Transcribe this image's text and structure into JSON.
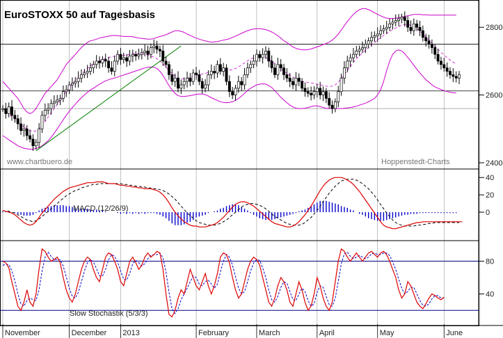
{
  "chart_data": {
    "title": "EuroSTOXX 50 auf Tagesbasis",
    "watermark_left": "www.chartbuero.de",
    "watermark_right": "Hoppenstedt-Charts",
    "colors": {
      "price": "#000000",
      "bollinger": "#cc00cc",
      "ma": "#cc00cc",
      "trendline": "#008000",
      "support_lines": "#000000",
      "macd_line": "#dd0000",
      "macd_signal": "#000000",
      "macd_hist": "#0000cc",
      "stoch_k": "#dd0000",
      "stoch_d": "#0000cc",
      "stoch_levels": "#000080"
    },
    "x_labels": [
      {
        "label": "November",
        "day": 0
      },
      {
        "label": "December",
        "day": 22
      },
      {
        "label": "2013",
        "day": 39
      },
      {
        "label": "February",
        "day": 64
      },
      {
        "label": "March",
        "day": 84
      },
      {
        "label": "April",
        "day": 104
      },
      {
        "label": "May",
        "day": 124
      },
      {
        "label": "June",
        "day": 146
      }
    ],
    "price_panel": {
      "type": "ohlc",
      "ylim": [
        2400,
        2860
      ],
      "yticks": [
        2400,
        2600,
        2800
      ],
      "horizontal_lines": [
        2750,
        2612,
        2560
      ],
      "trendline": [
        [
          11,
          2435
        ],
        [
          59,
          2745
        ]
      ],
      "close": [
        2560,
        2545,
        2565,
        2540,
        2530,
        2515,
        2495,
        2500,
        2480,
        2470,
        2450,
        2460,
        2500,
        2540,
        2555,
        2560,
        2575,
        2580,
        2585,
        2590,
        2610,
        2615,
        2630,
        2635,
        2640,
        2650,
        2660,
        2665,
        2670,
        2680,
        2690,
        2700,
        2695,
        2705,
        2700,
        2680,
        2670,
        2700,
        2720,
        2705,
        2710,
        2700,
        2715,
        2720,
        2715,
        2720,
        2725,
        2730,
        2720,
        2740,
        2745,
        2735,
        2730,
        2700,
        2690,
        2660,
        2640,
        2650,
        2620,
        2630,
        2640,
        2650,
        2640,
        2665,
        2660,
        2640,
        2620,
        2630,
        2660,
        2670,
        2665,
        2690,
        2670,
        2680,
        2640,
        2610,
        2600,
        2620,
        2640,
        2630,
        2660,
        2680,
        2690,
        2700,
        2720,
        2710,
        2720,
        2730,
        2700,
        2680,
        2660,
        2690,
        2680,
        2660,
        2650,
        2640,
        2630,
        2650,
        2640,
        2620,
        2610,
        2605,
        2600,
        2610,
        2620,
        2600,
        2610,
        2590,
        2570,
        2560,
        2580,
        2610,
        2650,
        2680,
        2700,
        2710,
        2720,
        2730,
        2735,
        2740,
        2750,
        2760,
        2770,
        2775,
        2780,
        2790,
        2795,
        2800,
        2810,
        2815,
        2820,
        2825,
        2830,
        2820,
        2800,
        2790,
        2810,
        2800,
        2790,
        2770,
        2760,
        2750,
        2740,
        2720,
        2700,
        2690,
        2680,
        2670,
        2660,
        2655,
        2650,
        2660
      ],
      "bollinger_upper": [
        2640,
        2630,
        2620,
        2610,
        2600,
        2590,
        2575,
        2560,
        2550,
        2545,
        2550,
        2560,
        2575,
        2590,
        2605,
        2615,
        2625,
        2635,
        2645,
        2660,
        2675,
        2690,
        2700,
        2710,
        2720,
        2730,
        2740,
        2748,
        2755,
        2760,
        2762,
        2765,
        2768,
        2770,
        2772,
        2774,
        2775,
        2776,
        2775,
        2774,
        2773,
        2773,
        2773,
        2772,
        2770,
        2768,
        2767,
        2766,
        2765,
        2765,
        2767,
        2770,
        2773,
        2775,
        2778,
        2782,
        2786,
        2790,
        2790,
        2788,
        2785,
        2780,
        2776,
        2772,
        2768,
        2765,
        2762,
        2760,
        2758,
        2756,
        2757,
        2758,
        2760,
        2762,
        2764,
        2766,
        2770,
        2774,
        2778,
        2782,
        2786,
        2790,
        2793,
        2795,
        2796,
        2796,
        2795,
        2793,
        2790,
        2786,
        2781,
        2775,
        2768,
        2760,
        2755,
        2748,
        2742,
        2738,
        2735,
        2734,
        2733,
        2734,
        2736,
        2739,
        2742,
        2745,
        2749,
        2752,
        2756,
        2762,
        2770,
        2780,
        2792,
        2805,
        2817,
        2828,
        2838,
        2846,
        2852,
        2855,
        2855,
        2852,
        2848,
        2843,
        2838,
        2834,
        2830,
        2827,
        2826,
        2826,
        2827,
        2828,
        2830,
        2832,
        2834,
        2836,
        2838,
        2838,
        2838,
        2837,
        2837,
        2836,
        2836,
        2836,
        2836,
        2836,
        2836,
        2836,
        2836,
        2836,
        2836
      ],
      "bollinger_lower": [
        2480,
        2474,
        2468,
        2462,
        2456,
        2450,
        2446,
        2443,
        2441,
        2440,
        2440,
        2442,
        2445,
        2450,
        2457,
        2465,
        2475,
        2487,
        2500,
        2513,
        2527,
        2540,
        2552,
        2563,
        2573,
        2583,
        2592,
        2600,
        2608,
        2615,
        2620,
        2626,
        2632,
        2637,
        2642,
        2645,
        2648,
        2650,
        2653,
        2656,
        2659,
        2662,
        2665,
        2668,
        2671,
        2674,
        2677,
        2680,
        2682,
        2683,
        2682,
        2678,
        2670,
        2658,
        2643,
        2628,
        2615,
        2605,
        2598,
        2596,
        2596,
        2597,
        2598,
        2600,
        2602,
        2603,
        2603,
        2601,
        2597,
        2592,
        2588,
        2584,
        2580,
        2578,
        2577,
        2578,
        2580,
        2584,
        2590,
        2597,
        2605,
        2614,
        2620,
        2625,
        2630,
        2632,
        2633,
        2632,
        2628,
        2622,
        2613,
        2603,
        2593,
        2585,
        2577,
        2570,
        2565,
        2561,
        2560,
        2560,
        2561,
        2563,
        2566,
        2568,
        2568,
        2566,
        2563,
        2561,
        2560,
        2560,
        2560,
        2560,
        2560,
        2561,
        2562,
        2563,
        2565,
        2567,
        2570,
        2573,
        2576,
        2580,
        2585,
        2590,
        2600,
        2615,
        2640,
        2672,
        2700,
        2720,
        2730,
        2733,
        2730,
        2722,
        2711,
        2700,
        2688,
        2676,
        2665,
        2655,
        2645,
        2638,
        2630,
        2624,
        2620,
        2616,
        2613,
        2610,
        2608,
        2607,
        2606
      ],
      "ma": [
        2560,
        2552,
        2544,
        2536,
        2528,
        2520,
        2512,
        2506,
        2500,
        2495,
        2492,
        2494,
        2500,
        2510,
        2522,
        2535,
        2548,
        2560,
        2572,
        2585,
        2598,
        2610,
        2622,
        2632,
        2642,
        2652,
        2662,
        2670,
        2678,
        2686,
        2692,
        2697,
        2701,
        2705,
        2708,
        2711,
        2713,
        2715,
        2716,
        2716,
        2717,
        2718,
        2720,
        2722,
        2722,
        2722,
        2722,
        2720,
        2718,
        2715,
        2712,
        2707,
        2700,
        2692,
        2682,
        2672,
        2663,
        2656,
        2650,
        2648,
        2648,
        2650,
        2652,
        2655,
        2658,
        2660,
        2662,
        2664,
        2666,
        2667,
        2669,
        2670,
        2671,
        2672,
        2672,
        2673,
        2675,
        2678,
        2683,
        2689,
        2695,
        2701,
        2706,
        2710,
        2713,
        2714,
        2713,
        2710,
        2706,
        2700,
        2693,
        2685,
        2677,
        2670,
        2664,
        2658,
        2653,
        2648,
        2644,
        2641,
        2639,
        2637,
        2636,
        2634,
        2632,
        2630,
        2628,
        2626,
        2625,
        2626,
        2630,
        2638,
        2648,
        2660,
        2672,
        2684,
        2696,
        2707,
        2716,
        2724,
        2732,
        2740,
        2748,
        2755,
        2762,
        2769,
        2776,
        2782,
        2788,
        2793,
        2798,
        2802,
        2806,
        2808,
        2808,
        2806,
        2802,
        2796,
        2789,
        2780,
        2771,
        2762,
        2753,
        2744,
        2735,
        2726,
        2718,
        2710,
        2703,
        2697,
        2692
      ]
    },
    "macd_panel": {
      "label": "MACD (12/26/9)",
      "ylim": [
        -20,
        45
      ],
      "yticks": [
        40,
        20,
        0
      ],
      "macd": [
        2,
        1,
        0,
        -1,
        -3,
        -6,
        -9,
        -12,
        -14,
        -15,
        -14,
        -11,
        -6,
        -1,
        3,
        7,
        11,
        15,
        18,
        21,
        24,
        26,
        28,
        29,
        30,
        31,
        32,
        33,
        34,
        34,
        34,
        35,
        35,
        35,
        34,
        33,
        33,
        33,
        32,
        31,
        31,
        30,
        30,
        29,
        29,
        28,
        28,
        27,
        27,
        27,
        26,
        25,
        23,
        20,
        16,
        11,
        5,
        0,
        -4,
        -8,
        -11,
        -13,
        -15,
        -16,
        -16,
        -17,
        -17,
        -17,
        -16,
        -15,
        -14,
        -12,
        -9,
        -6,
        -2,
        2,
        6,
        9,
        11,
        12,
        12,
        11,
        9,
        7,
        4,
        1,
        -2,
        -5,
        -8,
        -11,
        -13,
        -14,
        -15,
        -16,
        -17,
        -17,
        -16,
        -14,
        -11,
        -7,
        -3,
        2,
        7,
        13,
        19,
        25,
        30,
        34,
        37,
        39,
        40,
        40,
        40,
        39,
        37,
        35,
        32,
        28,
        24,
        19,
        14,
        9,
        4,
        -1,
        -6,
        -11,
        -15,
        -17,
        -18,
        -19,
        -19,
        -18,
        -17,
        -16,
        -15,
        -14,
        -13,
        -12,
        -12,
        -11,
        -11,
        -11,
        -11,
        -11,
        -11,
        -11,
        -11,
        -11,
        -11,
        -11,
        -11,
        -11,
        -11
      ],
      "signal": [
        2,
        1,
        1,
        0,
        -1,
        -3,
        -5,
        -7,
        -9,
        -10,
        -11,
        -10,
        -8,
        -5,
        -2,
        1,
        4,
        7,
        10,
        13,
        16,
        19,
        21,
        23,
        25,
        26,
        28,
        29,
        30,
        31,
        32,
        32,
        33,
        33,
        33,
        33,
        33,
        33,
        33,
        33,
        32,
        32,
        31,
        31,
        30,
        30,
        29,
        29,
        28,
        28,
        27,
        27,
        26,
        25,
        23,
        21,
        18,
        15,
        11,
        7,
        3,
        -1,
        -4,
        -7,
        -10,
        -12,
        -13,
        -14,
        -15,
        -15,
        -15,
        -14,
        -13,
        -11,
        -9,
        -6,
        -3,
        0,
        3,
        6,
        8,
        9,
        10,
        10,
        9,
        8,
        6,
        4,
        1,
        -2,
        -5,
        -7,
        -9,
        -11,
        -13,
        -14,
        -15,
        -15,
        -15,
        -14,
        -12,
        -9,
        -6,
        -2,
        2,
        7,
        12,
        17,
        22,
        26,
        30,
        33,
        36,
        37,
        38,
        38,
        38,
        37,
        35,
        33,
        30,
        27,
        23,
        19,
        14,
        9,
        4,
        -1,
        -5,
        -9,
        -12,
        -14,
        -15,
        -16,
        -16,
        -16,
        -16,
        -15,
        -15,
        -14,
        -14,
        -13,
        -13,
        -12,
        -12,
        -12,
        -12,
        -12,
        -12,
        -12,
        -12,
        -12
      ],
      "histogram": [
        1,
        1,
        1,
        0,
        -1,
        -2,
        -3,
        -4,
        -4,
        -4,
        -3,
        -1,
        2,
        4,
        5,
        6,
        7,
        8,
        8,
        8,
        8,
        7,
        7,
        6,
        5,
        5,
        4,
        4,
        4,
        3,
        2,
        3,
        2,
        2,
        1,
        0,
        0,
        0,
        -1,
        -2,
        -1,
        -2,
        -1,
        -2,
        -1,
        -2,
        -1,
        -2,
        -1,
        -1,
        -1,
        -2,
        -3,
        -5,
        -7,
        -10,
        -13,
        -15,
        -15,
        -15,
        -14,
        -12,
        -11,
        -9,
        -6,
        -5,
        -4,
        -3,
        -1,
        0,
        1,
        2,
        4,
        5,
        7,
        8,
        9,
        9,
        8,
        6,
        4,
        2,
        -1,
        -3,
        -5,
        -7,
        -8,
        -9,
        -9,
        -9,
        -8,
        -7,
        -6,
        -5,
        -4,
        -3,
        -2,
        -1,
        1,
        2,
        3,
        5,
        7,
        9,
        11,
        13,
        13,
        13,
        12,
        11,
        10,
        9,
        7,
        6,
        5,
        3,
        2,
        0,
        -2,
        -3,
        -5,
        -7,
        -8,
        -9,
        -10,
        -10,
        -10,
        -9,
        -8,
        -7,
        -6,
        -5,
        -4,
        -3,
        -3,
        -2,
        -2,
        -2,
        -1,
        -1,
        -1,
        -1,
        -1,
        -1,
        -1,
        -1,
        -1,
        -1,
        -1,
        -1,
        -1
      ]
    },
    "stoch_panel": {
      "label": "Slow Stochastik (5/3/3)",
      "ylim": [
        10,
        100
      ],
      "yticks": [
        80,
        40
      ],
      "levels": [
        80,
        20
      ],
      "k": [
        80,
        78,
        72,
        55,
        40,
        25,
        20,
        30,
        45,
        30,
        25,
        40,
        70,
        95,
        92,
        85,
        80,
        82,
        85,
        78,
        60,
        45,
        35,
        30,
        40,
        55,
        70,
        80,
        85,
        82,
        70,
        60,
        55,
        70,
        85,
        90,
        88,
        80,
        70,
        55,
        50,
        65,
        80,
        85,
        78,
        70,
        75,
        85,
        90,
        85,
        88,
        92,
        90,
        70,
        40,
        15,
        12,
        20,
        35,
        45,
        40,
        55,
        70,
        60,
        50,
        45,
        55,
        65,
        50,
        40,
        50,
        65,
        85,
        90,
        88,
        78,
        60,
        45,
        35,
        40,
        55,
        70,
        80,
        85,
        82,
        75,
        60,
        45,
        30,
        25,
        35,
        50,
        60,
        55,
        45,
        30,
        25,
        40,
        55,
        45,
        30,
        20,
        25,
        40,
        60,
        50,
        35,
        25,
        20,
        30,
        55,
        80,
        95,
        92,
        85,
        80,
        85,
        90,
        85,
        80,
        85,
        90,
        92,
        88,
        85,
        90,
        92,
        88,
        80,
        70,
        60,
        45,
        35,
        40,
        55,
        50,
        40,
        30,
        25,
        22,
        28,
        35,
        40,
        38,
        35,
        33,
        36
      ],
      "d": [
        75,
        76,
        76,
        68,
        56,
        40,
        28,
        25,
        32,
        35,
        33,
        32,
        45,
        68,
        85,
        91,
        86,
        82,
        82,
        82,
        74,
        61,
        47,
        37,
        35,
        42,
        55,
        68,
        78,
        82,
        79,
        71,
        62,
        62,
        70,
        82,
        88,
        86,
        79,
        68,
        58,
        57,
        65,
        77,
        81,
        78,
        74,
        77,
        83,
        87,
        88,
        88,
        90,
        84,
        67,
        42,
        22,
        16,
        22,
        33,
        40,
        47,
        55,
        62,
        60,
        52,
        50,
        55,
        57,
        52,
        47,
        52,
        67,
        80,
        88,
        85,
        75,
        61,
        47,
        40,
        43,
        55,
        68,
        78,
        82,
        81,
        72,
        60,
        45,
        33,
        30,
        37,
        48,
        55,
        53,
        43,
        33,
        32,
        40,
        47,
        43,
        32,
        25,
        28,
        42,
        50,
        48,
        37,
        27,
        25,
        35,
        55,
        77,
        89,
        91,
        86,
        83,
        85,
        87,
        85,
        83,
        85,
        89,
        90,
        88,
        88,
        90,
        90,
        87,
        79,
        70,
        58,
        47,
        40,
        43,
        48,
        48,
        40,
        32,
        26,
        25,
        28,
        34,
        38,
        38,
        35,
        35
      ]
    }
  }
}
